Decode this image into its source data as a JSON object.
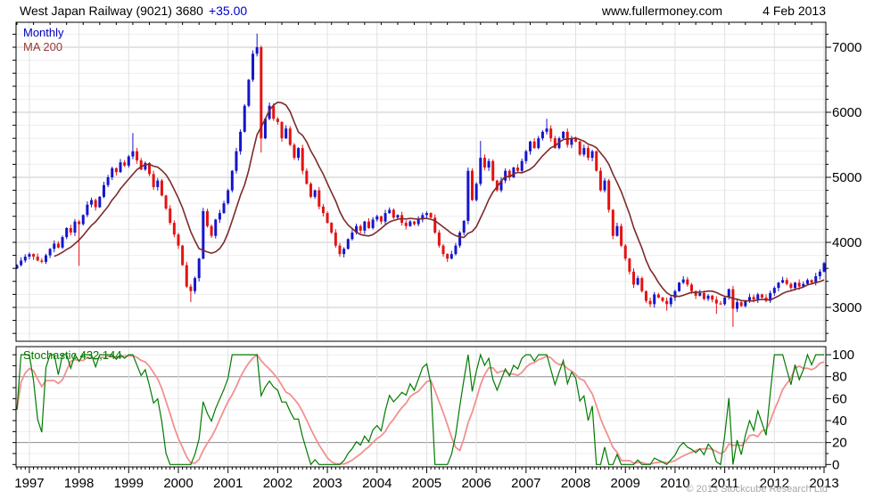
{
  "header": {
    "title": "West Japan Railway (9021) 3680",
    "change": "+35.00",
    "site": "www.fullermoney.com",
    "date": "4 Feb 2013"
  },
  "main_panel": {
    "timeframe_label": "Monthly",
    "ma_label": "MA 200",
    "y_axis": {
      "tick_labels": [
        7000,
        6000,
        5000,
        4000,
        3000
      ],
      "minor_step": 200,
      "minor_min": 2600,
      "minor_max": 7200
    }
  },
  "stoch_panel": {
    "label": "Stochastic 432,144",
    "y_axis": {
      "tick_labels": [
        100,
        80,
        60,
        40,
        20,
        0
      ],
      "minor_step": 10,
      "band_lines": [
        20,
        80
      ]
    }
  },
  "x_axis": {
    "years": [
      "1997",
      "1998",
      "1999",
      "2000",
      "2001",
      "2002",
      "2003",
      "2004",
      "2005",
      "2006",
      "2007",
      "2008",
      "2009",
      "2010",
      "2011",
      "2012",
      "2013"
    ]
  },
  "footer": {
    "copyright": "© 2013 Stockcube Research Ltd"
  },
  "colors": {
    "up": "#1515cd",
    "down": "#e51212",
    "ma": "#7c2a2a",
    "stoch_k": "#007b00",
    "stoch_d": "#f29090",
    "grid_minor": "#ededed",
    "grid_major": "#c9c9c9",
    "grid_vert": "#e0e0e0",
    "stoch_band": "#8e8e8e",
    "frame": "#000000",
    "change_blue": "#0000cc",
    "monthly_blue": "#0000bb",
    "ma_label": "#9b3a3a",
    "stoch_label": "#007700",
    "copyright": "#a6a6a6"
  },
  "chart_data": {
    "type": "candlestick",
    "instrument": "West Japan Railway (9021)",
    "timeframe": "Monthly",
    "last_price": 3680,
    "change": "+35.00",
    "start_month": "1996-10",
    "end_month": "2013-01",
    "first_open": 3600,
    "closes": [
      3650,
      3720,
      3780,
      3820,
      3780,
      3720,
      3700,
      3800,
      3900,
      3980,
      3920,
      4080,
      4220,
      4150,
      4320,
      4280,
      4420,
      4580,
      4650,
      4540,
      4700,
      4880,
      5000,
      5140,
      5080,
      5230,
      5180,
      5320,
      5400,
      5260,
      5120,
      5220,
      5050,
      4850,
      4950,
      4720,
      4520,
      4300,
      4120,
      3950,
      3650,
      3320,
      3250,
      3450,
      3750,
      4480,
      4250,
      4100,
      4350,
      4450,
      4600,
      4800,
      5100,
      5400,
      5700,
      6100,
      6500,
      6900,
      7000,
      5600,
      5900,
      6100,
      5900,
      5850,
      5600,
      5750,
      5500,
      5300,
      5450,
      5100,
      4900,
      4700,
      4800,
      4550,
      4450,
      4300,
      4150,
      3950,
      3820,
      3900,
      4050,
      4150,
      4250,
      4180,
      4320,
      4220,
      4350,
      4400,
      4320,
      4450,
      4500,
      4380,
      4420,
      4300,
      4250,
      4320,
      4280,
      4350,
      4420,
      4450,
      4380,
      4150,
      3950,
      3820,
      3750,
      3820,
      3950,
      4150,
      4330,
      5100,
      4650,
      4900,
      5300,
      5150,
      5250,
      4950,
      4800,
      4950,
      5100,
      5000,
      5150,
      5100,
      5250,
      5400,
      5550,
      5450,
      5600,
      5700,
      5750,
      5600,
      5450,
      5600,
      5700,
      5500,
      5600,
      5550,
      5350,
      5450,
      5300,
      5400,
      5100,
      4800,
      4950,
      4500,
      4100,
      4250,
      3950,
      3750,
      3550,
      3350,
      3450,
      3250,
      3100,
      3050,
      3200,
      3150,
      3100,
      3050,
      3150,
      3250,
      3380,
      3430,
      3350,
      3250,
      3180,
      3220,
      3130,
      3180,
      3120,
      3060,
      3050,
      3150,
      3280,
      2980,
      3080,
      3020,
      3100,
      3160,
      3120,
      3200,
      3150,
      3100,
      3220,
      3300,
      3380,
      3420,
      3360,
      3300,
      3380,
      3320,
      3360,
      3420,
      3380,
      3480,
      3550,
      3680
    ],
    "wick_overrides": {
      "15": {
        "low": 3640
      },
      "28": {
        "high": 5680
      },
      "42": {
        "low": 3080
      },
      "58": {
        "high": 7210
      },
      "59": {
        "low": 5380
      },
      "112": {
        "high": 5560
      },
      "128": {
        "high": 5900
      },
      "157": {
        "low": 2950
      },
      "169": {
        "low": 2900
      },
      "173": {
        "low": 2700
      },
      "195": {
        "high": 3700
      }
    },
    "ma": {
      "label": "MA 200",
      "window_months": 10
    },
    "stochastic": {
      "label": "Stochastic 432,144",
      "k_window_months": 21,
      "d_smooth_months": 7,
      "range": [
        0,
        100
      ]
    },
    "y_axis_range_main": [
      2480,
      7380
    ],
    "legend_position": "top-left",
    "grid": true
  }
}
